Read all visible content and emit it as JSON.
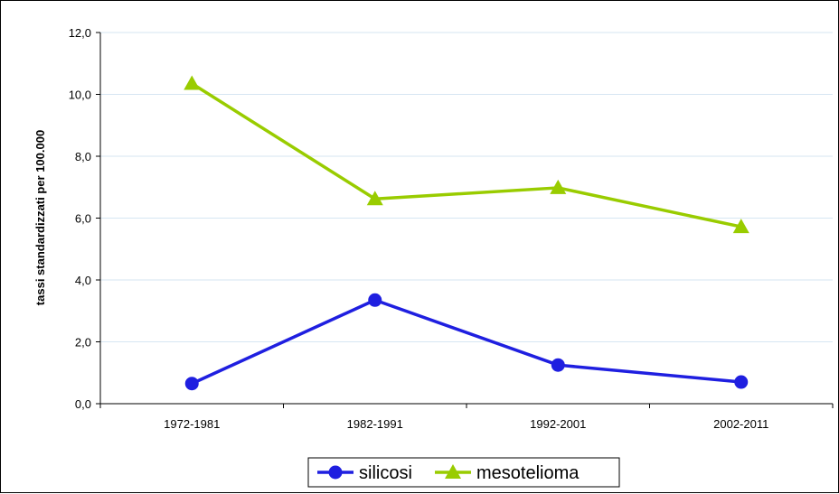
{
  "chart_data": {
    "type": "line",
    "title": "",
    "xlabel": "",
    "ylabel": "tassi standardizzati per 100.000",
    "categories": [
      "1972-1981",
      "1982-1991",
      "1992-2001",
      "2002-2011"
    ],
    "ylim": [
      0,
      12
    ],
    "yticks": [
      "0,0",
      "2,0",
      "4,0",
      "6,0",
      "8,0",
      "10,0",
      "12,0"
    ],
    "grid": true,
    "legend_position": "bottom",
    "series": [
      {
        "name": "silicosi",
        "values": [
          0.65,
          3.35,
          1.25,
          0.7
        ],
        "color": "#1f1fe0",
        "marker": "circle"
      },
      {
        "name": "mesotelioma",
        "values": [
          10.35,
          6.62,
          6.98,
          5.72
        ],
        "color": "#99cc00",
        "marker": "triangle"
      }
    ]
  }
}
